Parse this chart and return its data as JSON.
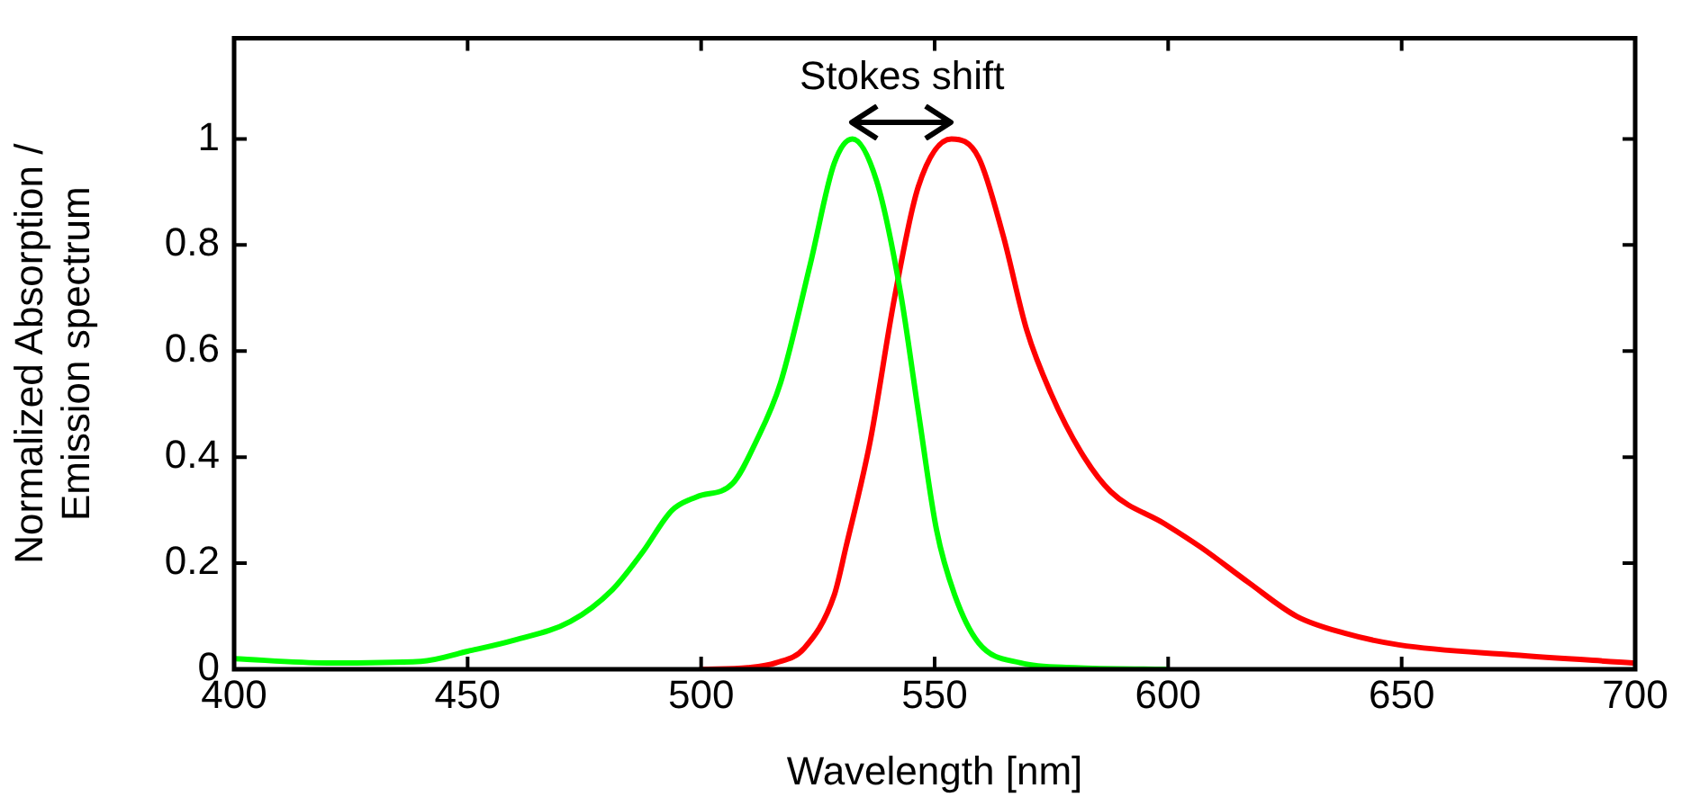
{
  "chart_data": {
    "type": "line",
    "xlabel": "Wavelength [nm]",
    "ylabel": "Normalized Absorption /\nEmission spectrum",
    "xlim": [
      400,
      700
    ],
    "xticks": [
      400,
      450,
      500,
      550,
      600,
      650,
      700
    ],
    "ylim": [
      0,
      1.19
    ],
    "yticks": [
      0,
      0.2,
      0.4,
      0.6,
      0.8,
      1
    ],
    "grid": false,
    "marker": "none",
    "line_style": "solid",
    "annotations": [
      "Stokes shift"
    ],
    "series": [
      {
        "color": "#00ff00",
        "x": [
          400,
          420,
          440,
          450,
          460,
          472,
          481,
          487.4,
          493.8,
          499,
          506.7,
          511.8,
          517,
          523.4,
          528.5,
          532.4,
          537.6,
          542.7,
          546.5,
          550.4,
          554.3,
          559.4,
          568.4,
          580,
          599.3
        ],
        "values": [
          0.02,
          0.012,
          0.015,
          0.034,
          0.055,
          0.09,
          0.15,
          0.22,
          0.3,
          0.325,
          0.35,
          0.43,
          0.54,
          0.765,
          0.954,
          1,
          0.92,
          0.71,
          0.486,
          0.263,
          0.14,
          0.05,
          0.012,
          0.003,
          0
        ]
      },
      {
        "color": "#ff0000",
        "x": [
          500,
          510,
          516,
          522.1,
          528.5,
          531,
          536.2,
          541.4,
          546.5,
          553.6,
          559.4,
          564.6,
          569.7,
          574.9,
          581.3,
          587.7,
          599.3,
          607,
          617.3,
          627.5,
          637.8,
          649.4,
          673.8,
          699.5
        ],
        "values": [
          0,
          0.003,
          0.012,
          0.04,
          0.14,
          0.23,
          0.43,
          0.7,
          0.91,
          1,
          0.965,
          0.82,
          0.64,
          0.52,
          0.41,
          0.335,
          0.274,
          0.23,
          0.163,
          0.1,
          0.068,
          0.046,
          0.027,
          0.012
        ]
      }
    ]
  }
}
